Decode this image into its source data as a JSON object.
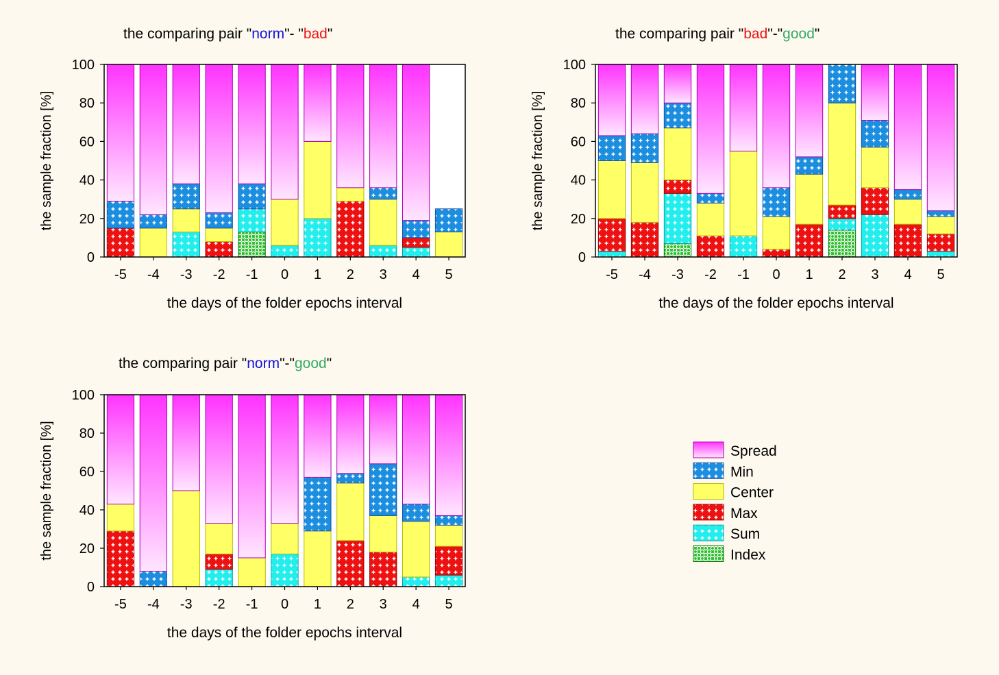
{
  "colors": {
    "background": "#fdf9ee",
    "spread_top": "#ff33ff",
    "spread_bottom": "#ffe6ff",
    "min": "#1c8ee0",
    "center": "#ffff66",
    "max": "#ee1111",
    "sum": "#22eeee",
    "index": "#22bb22",
    "norm": "#1111dd",
    "bad": "#ee1111",
    "good": "#33aa66"
  },
  "legend": {
    "items": [
      {
        "key": "spread",
        "label": "Spread"
      },
      {
        "key": "min",
        "label": "Min"
      },
      {
        "key": "center",
        "label": "Center"
      },
      {
        "key": "max",
        "label": "Max"
      },
      {
        "key": "sum",
        "label": "Sum"
      },
      {
        "key": "index",
        "label": "Index"
      }
    ]
  },
  "chart_data": [
    {
      "type": "bar",
      "stacked": true,
      "title_parts": [
        {
          "text": "the comparing pair \"",
          "color": "#000000"
        },
        {
          "text": "norm",
          "color": "#1111dd"
        },
        {
          "text": "\"- \"",
          "color": "#000000"
        },
        {
          "text": "bad",
          "color": "#ee1111"
        },
        {
          "text": "\"",
          "color": "#000000"
        }
      ],
      "xlabel": "the days of the folder epochs interval",
      "ylabel": "the sample fraction [%]",
      "ylim": [
        0,
        100
      ],
      "yticks": [
        "0",
        "20",
        "40",
        "60",
        "80",
        "100"
      ],
      "categories": [
        "-5",
        "-4",
        "-3",
        "-2",
        "-1",
        "0",
        "1",
        "2",
        "3",
        "4",
        "5"
      ],
      "series": [
        {
          "name": "Index",
          "key": "index",
          "values": [
            0,
            0,
            0,
            0,
            13,
            0,
            0,
            0,
            0,
            0,
            0
          ]
        },
        {
          "name": "Sum",
          "key": "sum",
          "values": [
            0,
            0,
            13,
            0,
            12,
            6,
            20,
            0,
            6,
            5,
            0
          ]
        },
        {
          "name": "Max",
          "key": "max",
          "values": [
            15,
            0,
            0,
            8,
            0,
            0,
            0,
            29,
            0,
            5,
            0
          ]
        },
        {
          "name": "Center",
          "key": "center",
          "values": [
            0,
            15,
            12,
            7,
            0,
            24,
            40,
            7,
            24,
            0,
            13
          ]
        },
        {
          "name": "Min",
          "key": "min",
          "values": [
            14,
            7,
            13,
            8,
            13,
            0,
            0,
            0,
            6,
            9,
            12
          ]
        },
        {
          "name": "Spread",
          "key": "spread",
          "values": [
            71,
            78,
            62,
            77,
            62,
            70,
            40,
            64,
            64,
            81,
            0
          ]
        }
      ]
    },
    {
      "type": "bar",
      "stacked": true,
      "title_parts": [
        {
          "text": "the comparing pair \"",
          "color": "#000000"
        },
        {
          "text": "bad",
          "color": "#ee1111"
        },
        {
          "text": "\"-\"",
          "color": "#000000"
        },
        {
          "text": "good",
          "color": "#33aa66"
        },
        {
          "text": "\"",
          "color": "#000000"
        }
      ],
      "xlabel": "the days of the folder epochs interval",
      "ylabel": "the sample fraction [%]",
      "ylim": [
        0,
        100
      ],
      "yticks": [
        "0",
        "20",
        "40",
        "60",
        "80",
        "100"
      ],
      "categories": [
        "-5",
        "-4",
        "-3",
        "-2",
        "-1",
        "0",
        "1",
        "2",
        "3",
        "4",
        "5"
      ],
      "series": [
        {
          "name": "Index",
          "key": "index",
          "values": [
            0,
            0,
            7,
            0,
            0,
            0,
            0,
            14,
            0,
            0,
            0
          ]
        },
        {
          "name": "Sum",
          "key": "sum",
          "values": [
            3,
            0,
            26,
            0,
            11,
            0,
            0,
            6,
            22,
            0,
            3
          ]
        },
        {
          "name": "Max",
          "key": "max",
          "values": [
            17,
            18,
            7,
            11,
            0,
            4,
            17,
            7,
            14,
            17,
            9
          ]
        },
        {
          "name": "Center",
          "key": "center",
          "values": [
            30,
            31,
            27,
            17,
            44,
            17,
            26,
            53,
            21,
            13,
            9
          ]
        },
        {
          "name": "Min",
          "key": "min",
          "values": [
            13,
            15,
            13,
            5,
            0,
            15,
            9,
            20,
            14,
            5,
            3
          ]
        },
        {
          "name": "Spread",
          "key": "spread",
          "values": [
            37,
            36,
            20,
            67,
            45,
            64,
            48,
            0,
            29,
            65,
            76
          ]
        }
      ]
    },
    {
      "type": "bar",
      "stacked": true,
      "title_parts": [
        {
          "text": "the comparing pair \"",
          "color": "#000000"
        },
        {
          "text": "norm",
          "color": "#1111dd"
        },
        {
          "text": "\"-\"",
          "color": "#000000"
        },
        {
          "text": "good",
          "color": "#33aa66"
        },
        {
          "text": "\"",
          "color": "#000000"
        }
      ],
      "xlabel": "the days of the folder epochs interval",
      "ylabel": "the sample fraction [%]",
      "ylim": [
        0,
        100
      ],
      "yticks": [
        "0",
        "20",
        "40",
        "60",
        "80",
        "100"
      ],
      "categories": [
        "-5",
        "-4",
        "-3",
        "-2",
        "-1",
        "0",
        "1",
        "2",
        "3",
        "4",
        "5"
      ],
      "series": [
        {
          "name": "Index",
          "key": "index",
          "values": [
            0,
            0,
            0,
            0,
            0,
            0,
            0,
            0,
            0,
            0,
            0
          ]
        },
        {
          "name": "Sum",
          "key": "sum",
          "values": [
            0,
            0,
            0,
            9,
            0,
            17,
            0,
            0,
            0,
            5,
            6
          ]
        },
        {
          "name": "Max",
          "key": "max",
          "values": [
            29,
            0,
            0,
            8,
            0,
            0,
            0,
            24,
            18,
            0,
            15
          ]
        },
        {
          "name": "Center",
          "key": "center",
          "values": [
            14,
            0,
            50,
            16,
            15,
            16,
            29,
            30,
            19,
            29,
            11
          ]
        },
        {
          "name": "Min",
          "key": "min",
          "values": [
            0,
            8,
            0,
            0,
            0,
            0,
            28,
            5,
            27,
            9,
            5
          ]
        },
        {
          "name": "Spread",
          "key": "spread",
          "values": [
            57,
            92,
            50,
            67,
            85,
            67,
            43,
            41,
            36,
            57,
            63
          ]
        }
      ]
    }
  ]
}
